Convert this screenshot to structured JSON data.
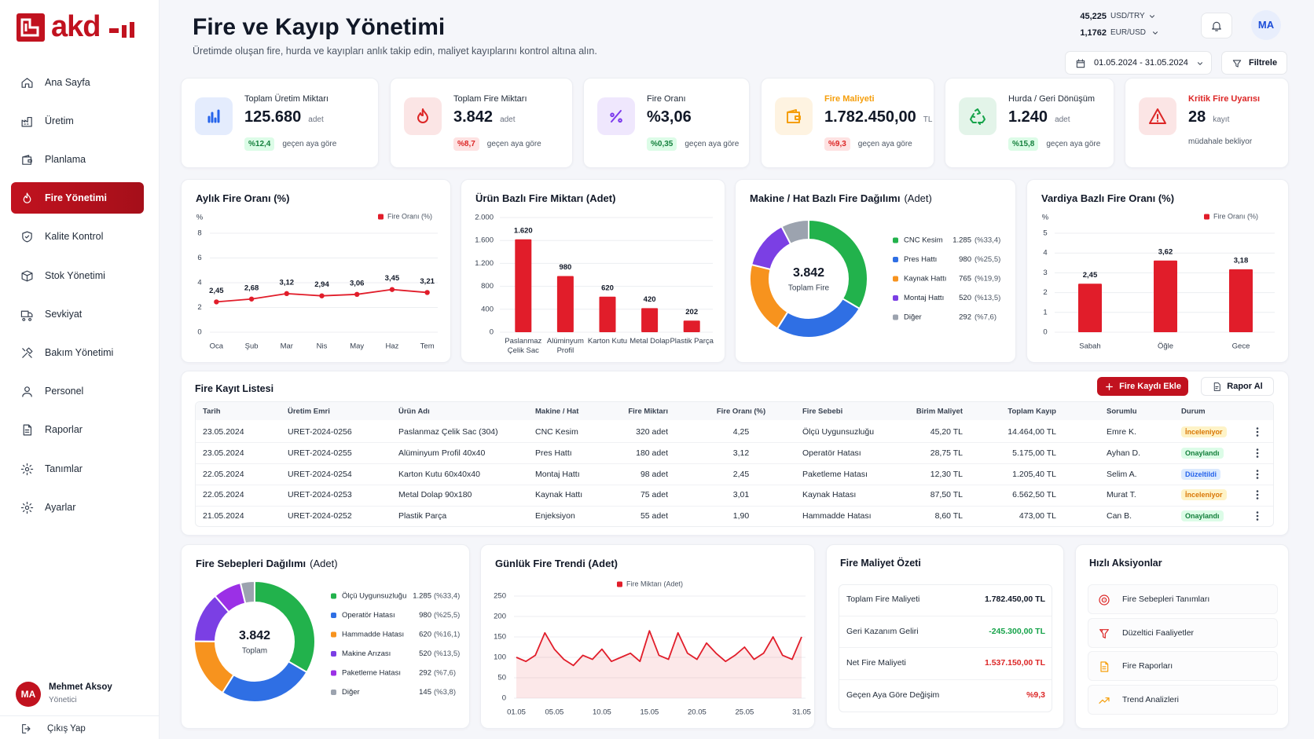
{
  "sidebar": {
    "logo": "akd",
    "nav": [
      {
        "label": "Ana Sayfa"
      },
      {
        "label": "Üretim"
      },
      {
        "label": "Planlama"
      },
      {
        "label": "Fire Yönetimi",
        "active": true
      },
      {
        "label": "Kalite Kontrol"
      },
      {
        "label": "Stok Yönetimi"
      },
      {
        "label": "Sevkiyat"
      },
      {
        "label": "Bakım Yönetimi"
      },
      {
        "label": "Personel"
      },
      {
        "label": "Raporlar"
      },
      {
        "label": "Tanımlar"
      },
      {
        "label": "Ayarlar"
      }
    ],
    "user": {
      "initials": "MA",
      "name": "Mehmet Aksoy",
      "role": "Yönetici"
    },
    "logout": "Çıkış Yap"
  },
  "header": {
    "title": "Fire ve Kayıp Yönetimi",
    "subtitle": "Üretimde oluşan fire, hurda ve kayıpları anlık takip edin, maliyet kayıplarını kontrol altına alın.",
    "rates": [
      {
        "value": "45,225",
        "pair": "USD/TRY"
      },
      {
        "value": "1,1762",
        "pair": "EUR/USD"
      }
    ],
    "avatar": "MA",
    "date_range": "01.05.2024 - 31.05.2024",
    "filter": "Filtrele"
  },
  "kpis": [
    {
      "label": "Toplam Üretim Miktarı",
      "value": "125.680",
      "unit": "adet",
      "change": "%12,4",
      "badge": "green",
      "note": "geçen aya göre",
      "color": "#2563eb"
    },
    {
      "label": "Toplam Fire Miktarı",
      "value": "3.842",
      "unit": "adet",
      "change": "%8,7",
      "badge": "red",
      "note": "geçen aya göre",
      "color": "#dc2626"
    },
    {
      "label": "Fire Oranı",
      "value": "%3,06",
      "change": "%0,35",
      "badge": "green",
      "note": "geçen aya göre",
      "color": "#7c3aed"
    },
    {
      "label": "Fire Maliyeti",
      "label_color": "#f59e0b",
      "value": "1.782.450,00",
      "unit": "TL",
      "change": "%9,3",
      "badge": "red",
      "note": "geçen aya göre",
      "color": "#f59e0b"
    },
    {
      "label": "Hurda / Geri Dönüşüm",
      "value": "1.240",
      "unit": "adet",
      "change": "%15,8",
      "badge": "green",
      "note": "geçen aya göre",
      "color": "#16a34a"
    },
    {
      "label": "Kritik Fire Uyarısı",
      "label_color": "#dc2626",
      "value": "28",
      "unit": "kayıt",
      "note": "müdahale bekliyor",
      "color": "#dc2626"
    }
  ],
  "chart_data": [
    {
      "type": "line",
      "title": "Aylık Fire Oranı (%)",
      "y_label": "%",
      "categories": [
        "Oca",
        "Şub",
        "Mar",
        "Nis",
        "May",
        "Haz",
        "Tem"
      ],
      "series": [
        {
          "name": "Fire Oranı (%)",
          "color": "#e11d2a",
          "values": [
            2.45,
            2.68,
            3.12,
            2.94,
            3.06,
            3.45,
            3.21
          ],
          "value_labels": [
            "2,45",
            "2,68",
            "3,12",
            "2,94",
            "3,06",
            "3,45",
            "3,21"
          ]
        }
      ],
      "ylim": [
        0,
        8
      ],
      "yticks": [
        0,
        2,
        4,
        6,
        8
      ],
      "grid": true,
      "markers": true,
      "legend": "top-right"
    },
    {
      "type": "bar",
      "title": "Ürün Bazlı Fire Miktarı (Adet)",
      "categories": [
        "Paslanmaz Çelik Sac",
        "Alüminyum Profil",
        "Karton Kutu",
        "Metal Dolap",
        "Plastik Parça"
      ],
      "series": [
        {
          "color": "#e11d2a",
          "values": [
            1620,
            980,
            620,
            420,
            202
          ],
          "value_labels": [
            "1.620",
            "980",
            "620",
            "420",
            "202"
          ]
        }
      ],
      "ylim": [
        0,
        2000
      ],
      "yticks": [
        0,
        400,
        800,
        {
          "value": 1200,
          "label": "1.200"
        },
        {
          "value": 1600,
          "label": "1.600"
        },
        {
          "value": 2000,
          "label": "2.000"
        }
      ],
      "grid": true
    },
    {
      "type": "pie",
      "title": "Makine / Hat Bazlı Fire Dağılımı",
      "subtitle": "(Adet)",
      "center_value": "3.842",
      "center_label": "Toplam Fire",
      "categories": [
        "CNC Kesim",
        "Pres Hattı",
        "Kaynak Hattı",
        "Montaj Hattı",
        "Diğer"
      ],
      "values": [
        1285,
        980,
        765,
        520,
        292
      ],
      "value_labels": [
        "1.285",
        "980",
        "765",
        "520",
        "292"
      ],
      "percent_labels": [
        "(%33,4)",
        "(%25,5)",
        "(%19,9)",
        "(%13,5)",
        "(%7,6)"
      ],
      "colors": [
        "#22b24c",
        "#2f6fe4",
        "#f7931e",
        "#7b3fe4",
        "#9ca3af"
      ]
    },
    {
      "type": "bar",
      "title": "Vardiya Bazlı Fire Oranı (%)",
      "y_label": "%",
      "categories": [
        "Sabah",
        "Öğle",
        "Gece"
      ],
      "series": [
        {
          "name": "Fire Oranı (%)",
          "color": "#e11d2a",
          "values": [
            2.45,
            3.62,
            3.18
          ],
          "value_labels": [
            "2,45",
            "3,62",
            "3,18"
          ]
        }
      ],
      "ylim": [
        0,
        5
      ],
      "yticks": [
        0,
        1,
        2,
        3,
        4,
        5
      ],
      "grid": true,
      "legend": "top-right"
    },
    {
      "type": "pie",
      "title": "Fire Sebepleri Dağılımı",
      "subtitle": "(Adet)",
      "center_value": "3.842",
      "center_label": "Toplam",
      "categories": [
        "Ölçü Uygunsuzluğu",
        "Operatör Hatası",
        "Hammadde Hatası",
        "Makine Arızası",
        "Paketleme Hatası",
        "Diğer"
      ],
      "values": [
        1285,
        980,
        620,
        520,
        292,
        145
      ],
      "value_labels": [
        "1.285",
        "980",
        "620",
        "520",
        "292",
        "145"
      ],
      "percent_labels": [
        "(%33,4)",
        "(%25,5)",
        "(%16,1)",
        "(%13,5)",
        "(%7,6)",
        "(%3,8)"
      ],
      "colors": [
        "#22b24c",
        "#2f6fe4",
        "#f7931e",
        "#7b3fe4",
        "#9b30e6",
        "#9ca3af"
      ]
    },
    {
      "type": "line",
      "title": "Günlük Fire Trendi (Adet)",
      "categories": [
        "01.05",
        null,
        null,
        null,
        "05.05",
        null,
        null,
        null,
        null,
        "10.05",
        null,
        null,
        null,
        null,
        "15.05",
        null,
        null,
        null,
        null,
        "20.05",
        null,
        null,
        null,
        null,
        "25.05",
        null,
        null,
        null,
        null,
        null,
        "31.05"
      ],
      "series": [
        {
          "name": "Fire Miktarı (Adet)",
          "color": "#e11d2a",
          "values": [
            100,
            90,
            105,
            160,
            120,
            95,
            80,
            105,
            95,
            120,
            90,
            100,
            110,
            90,
            165,
            105,
            95,
            160,
            110,
            95,
            135,
            110,
            90,
            105,
            125,
            95,
            110,
            150,
            105,
            95,
            150
          ]
        }
      ],
      "ylim": [
        0,
        250
      ],
      "yticks": [
        0,
        50,
        100,
        150,
        200,
        250
      ],
      "grid": true,
      "area": true,
      "legend": "top-center"
    }
  ],
  "table": {
    "title": "Fire Kayıt Listesi",
    "add_button": "Fire Kaydı Ekle",
    "report_button": "Rapor Al",
    "columns": [
      "Tarih",
      "Üretim Emri",
      "Ürün Adı",
      "Makine / Hat",
      "Fire Miktarı",
      "Fire Oranı (%)",
      "Fire Sebebi",
      "Birim Maliyet",
      "Toplam Kayıp",
      "Sorumlu",
      "Durum"
    ],
    "rows": [
      [
        "23.05.2024",
        "URET-2024-0256",
        "Paslanmaz Çelik Sac (304)",
        "CNC Kesim",
        "320 adet",
        "4,25",
        "Ölçü Uygunsuzluğu",
        "45,20 TL",
        "14.464,00 TL",
        "Emre K.",
        "İnceleniyor"
      ],
      [
        "23.05.2024",
        "URET-2024-0255",
        "Alüminyum Profil 40x40",
        "Pres Hattı",
        "180 adet",
        "3,12",
        "Operatör Hatası",
        "28,75 TL",
        "5.175,00 TL",
        "Ayhan D.",
        "Onaylandı"
      ],
      [
        "22.05.2024",
        "URET-2024-0254",
        "Karton Kutu 60x40x40",
        "Montaj Hattı",
        "98 adet",
        "2,45",
        "Paketleme Hatası",
        "12,30 TL",
        "1.205,40 TL",
        "Selim A.",
        "Düzeltildi"
      ],
      [
        "22.05.2024",
        "URET-2024-0253",
        "Metal Dolap 90x180",
        "Kaynak Hattı",
        "75 adet",
        "3,01",
        "Kaynak Hatası",
        "87,50 TL",
        "6.562,50 TL",
        "Murat T.",
        "İnceleniyor"
      ],
      [
        "21.05.2024",
        "URET-2024-0252",
        "Plastik Parça",
        "Enjeksiyon",
        "55 adet",
        "1,90",
        "Hammadde Hatası",
        "8,60 TL",
        "473,00 TL",
        "Can B.",
        "Onaylandı"
      ]
    ],
    "status_colors": [
      "orange",
      "green",
      "blue",
      "orange",
      "green"
    ]
  },
  "cost_summary": {
    "title": "Fire Maliyet Özeti",
    "rows": [
      {
        "label": "Toplam Fire Maliyeti",
        "value": "1.782.450,00 TL",
        "color": "#111827"
      },
      {
        "label": "Geri Kazanım Geliri",
        "value": "-245.300,00 TL",
        "color": "#16a34a"
      },
      {
        "label": "Net Fire Maliyeti",
        "value": "1.537.150,00 TL",
        "color": "#dc2626"
      },
      {
        "label": "Geçen Aya Göre Değişim",
        "value": "%9,3",
        "color": "#dc2626"
      }
    ]
  },
  "quick_actions": {
    "title": "Hızlı Aksiyonlar",
    "items": [
      "Fire Sebepleri Tanımları",
      "Düzeltici Faaliyetler",
      "Fire Raporları",
      "Trend Analizleri"
    ]
  }
}
